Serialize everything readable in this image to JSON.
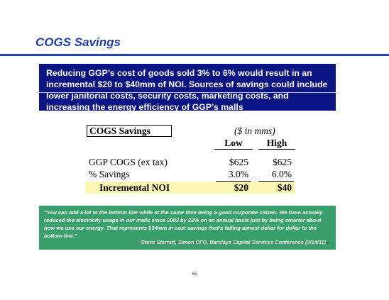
{
  "title": "COGS Savings",
  "summary": "Reducing GGP’s cost of goods sold 3% to 6% would result in an incremental $20 to $40mm of NOI. Sources of savings could include lower janitorial costs, security costs, marketing costs, and increasing the energy efficiency of GGP’s malls",
  "table": {
    "label": "COGS Savings",
    "units": "($ in mms)",
    "columns": [
      "Low",
      "High"
    ],
    "rows": [
      {
        "label": "GGP COGS (ex tax)",
        "low": "$625",
        "high": "$625"
      },
      {
        "label": "% Savings",
        "low": "3.0%",
        "high": "6.0%"
      },
      {
        "label": "Incremental NOI",
        "low": "$20",
        "high": "$40"
      }
    ]
  },
  "quote": "“You can add a lot to the bottom line while at the same time being a good corporate citizen. We have actually reduced the electricity usage in our malls since 2003 by 22% on an annual basis just by being smarter about how we use our energy. That represents $34mm in cost savings that’s falling almost dollar for dollar to the bottom line.”",
  "attribution": "–Steve Sterrett, Simon CFO, Barclays Capital Services Conference (9/14/11)",
  "page_number": "65",
  "colors": {
    "title": "#1f3fa6",
    "summary_box": "#0a1483",
    "quote_box": "#3aa06b",
    "highlight": "#fbf7b4"
  }
}
